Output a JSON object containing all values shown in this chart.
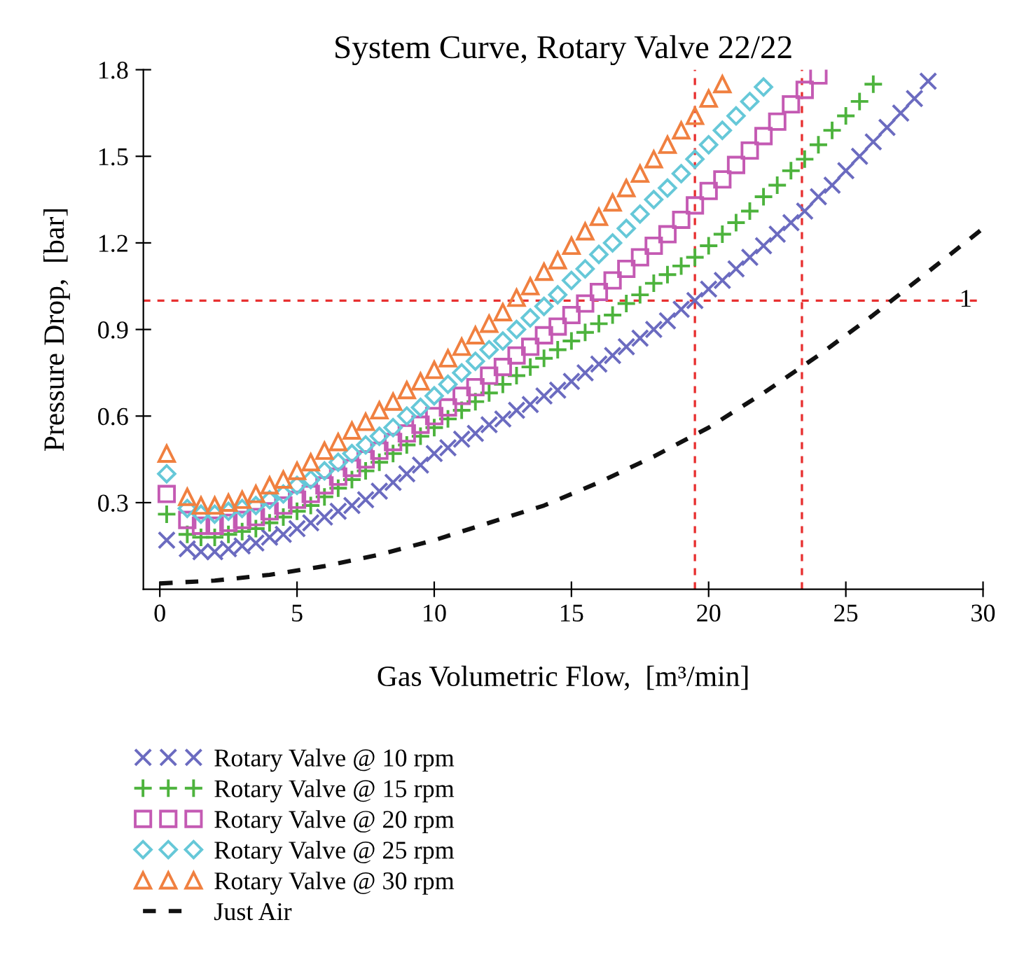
{
  "chart_data": {
    "type": "scatter",
    "title": "System Curve, Rotary Valve 22/22",
    "xlabel": "Gas Volumetric Flow,  [m³/min]",
    "ylabel": "Pressure Drop,  [bar]",
    "xlim": [
      -0.6,
      30
    ],
    "ylim": [
      0,
      1.8
    ],
    "xticks": [
      0,
      5,
      10,
      15,
      20,
      25,
      30
    ],
    "yticks": [
      0.3,
      0.6,
      0.9,
      1.2,
      1.5,
      1.8
    ],
    "grid": false,
    "legend": "bottom",
    "ref_lines": [
      {
        "axis": "y",
        "value": 1,
        "label": "1",
        "color": "#e83030",
        "line_style": "dashed"
      },
      {
        "axis": "x",
        "value": 19.5,
        "color": "#e83030",
        "line_style": "dashed"
      },
      {
        "axis": "x",
        "value": 23.4,
        "color": "#e83030",
        "line_style": "dashed"
      }
    ],
    "series": [
      {
        "name": "Rotary Valve @ 10 rpm",
        "color": "#6b6bc0",
        "marker": "x",
        "x": [
          0.25,
          1,
          1.5,
          2,
          2.5,
          3,
          3.5,
          4,
          4.5,
          5,
          5.5,
          6,
          6.5,
          7,
          7.5,
          8,
          8.5,
          9,
          9.5,
          10,
          10.5,
          11,
          11.5,
          12,
          12.5,
          13,
          13.5,
          14,
          14.5,
          15,
          15.5,
          16,
          16.5,
          17,
          17.5,
          18,
          18.5,
          19,
          19.5,
          20,
          20.5,
          21,
          21.5,
          22,
          22.5,
          23,
          23.5,
          24,
          24.5,
          25,
          25.5,
          26,
          26.5,
          27,
          27.5,
          28
        ],
        "values": [
          0.17,
          0.14,
          0.13,
          0.13,
          0.14,
          0.15,
          0.16,
          0.18,
          0.19,
          0.21,
          0.23,
          0.25,
          0.27,
          0.29,
          0.31,
          0.34,
          0.37,
          0.4,
          0.43,
          0.47,
          0.49,
          0.52,
          0.54,
          0.57,
          0.59,
          0.62,
          0.64,
          0.67,
          0.69,
          0.72,
          0.75,
          0.78,
          0.81,
          0.84,
          0.87,
          0.9,
          0.93,
          0.97,
          1.0,
          1.04,
          1.07,
          1.11,
          1.15,
          1.19,
          1.23,
          1.27,
          1.31,
          1.36,
          1.4,
          1.45,
          1.5,
          1.55,
          1.6,
          1.65,
          1.7,
          1.76
        ]
      },
      {
        "name": "Rotary Valve @ 15 rpm",
        "color": "#4db33d",
        "marker": "cross",
        "x": [
          0.25,
          1,
          1.5,
          2,
          2.5,
          3,
          3.5,
          4,
          4.5,
          5,
          5.5,
          6,
          6.5,
          7,
          7.5,
          8,
          8.5,
          9,
          9.5,
          10,
          10.5,
          11,
          11.5,
          12,
          12.5,
          13,
          13.5,
          14,
          14.5,
          15,
          15.5,
          16,
          16.5,
          17,
          17.5,
          18,
          18.5,
          19,
          19.5,
          20,
          20.5,
          21,
          21.5,
          22,
          22.5,
          23,
          23.5,
          24,
          24.5,
          25,
          25.5,
          26
        ],
        "values": [
          0.26,
          0.19,
          0.18,
          0.18,
          0.19,
          0.2,
          0.21,
          0.23,
          0.25,
          0.27,
          0.29,
          0.32,
          0.35,
          0.38,
          0.41,
          0.44,
          0.47,
          0.5,
          0.53,
          0.56,
          0.59,
          0.62,
          0.65,
          0.68,
          0.71,
          0.74,
          0.77,
          0.8,
          0.83,
          0.86,
          0.89,
          0.92,
          0.95,
          0.99,
          1.02,
          1.06,
          1.09,
          1.12,
          1.15,
          1.19,
          1.23,
          1.27,
          1.31,
          1.36,
          1.4,
          1.45,
          1.49,
          1.54,
          1.59,
          1.64,
          1.69,
          1.75
        ]
      },
      {
        "name": "Rotary Valve @ 20 rpm",
        "color": "#c45ab3",
        "marker": "square",
        "x": [
          0.25,
          1,
          1.5,
          2,
          2.5,
          3,
          3.5,
          4,
          4.5,
          5,
          5.5,
          6,
          6.5,
          7,
          7.5,
          8,
          8.5,
          9,
          9.5,
          10,
          10.5,
          11,
          11.5,
          12,
          12.5,
          13,
          13.5,
          14,
          14.5,
          15,
          15.5,
          16,
          16.5,
          17,
          17.5,
          18,
          18.5,
          19,
          19.5,
          20,
          20.5,
          21,
          21.5,
          22,
          22.5,
          23,
          23.5,
          24
        ],
        "values": [
          0.33,
          0.24,
          0.22,
          0.22,
          0.23,
          0.24,
          0.25,
          0.27,
          0.29,
          0.31,
          0.33,
          0.36,
          0.39,
          0.42,
          0.45,
          0.48,
          0.51,
          0.54,
          0.57,
          0.6,
          0.63,
          0.67,
          0.7,
          0.74,
          0.77,
          0.81,
          0.84,
          0.88,
          0.91,
          0.95,
          0.99,
          1.03,
          1.07,
          1.11,
          1.15,
          1.19,
          1.23,
          1.28,
          1.33,
          1.38,
          1.42,
          1.47,
          1.52,
          1.57,
          1.62,
          1.68,
          1.73,
          1.78
        ]
      },
      {
        "name": "Rotary Valve @ 25 rpm",
        "color": "#66c8d8",
        "marker": "diamond",
        "x": [
          0.25,
          1,
          1.5,
          2,
          2.5,
          3,
          3.5,
          4,
          4.5,
          5,
          5.5,
          6,
          6.5,
          7,
          7.5,
          8,
          8.5,
          9,
          9.5,
          10,
          10.5,
          11,
          11.5,
          12,
          12.5,
          13,
          13.5,
          14,
          14.5,
          15,
          15.5,
          16,
          16.5,
          17,
          17.5,
          18,
          18.5,
          19,
          19.5,
          20,
          20.5,
          21,
          21.5,
          22
        ],
        "values": [
          0.4,
          0.28,
          0.26,
          0.26,
          0.27,
          0.28,
          0.29,
          0.31,
          0.33,
          0.36,
          0.38,
          0.41,
          0.44,
          0.47,
          0.5,
          0.53,
          0.56,
          0.6,
          0.63,
          0.67,
          0.71,
          0.75,
          0.79,
          0.83,
          0.86,
          0.9,
          0.94,
          0.98,
          1.02,
          1.07,
          1.11,
          1.16,
          1.2,
          1.25,
          1.3,
          1.35,
          1.39,
          1.44,
          1.49,
          1.54,
          1.59,
          1.64,
          1.69,
          1.74
        ]
      },
      {
        "name": "Rotary Valve @ 30 rpm",
        "color": "#f08040",
        "marker": "triangle",
        "x": [
          0.25,
          1,
          1.5,
          2,
          2.5,
          3,
          3.5,
          4,
          4.5,
          5,
          5.5,
          6,
          6.5,
          7,
          7.5,
          8,
          8.5,
          9,
          9.5,
          10,
          10.5,
          11,
          11.5,
          12,
          12.5,
          13,
          13.5,
          14,
          14.5,
          15,
          15.5,
          16,
          16.5,
          17,
          17.5,
          18,
          18.5,
          19,
          19.5,
          20,
          20.5
        ],
        "values": [
          0.47,
          0.32,
          0.29,
          0.29,
          0.3,
          0.31,
          0.33,
          0.36,
          0.38,
          0.41,
          0.44,
          0.48,
          0.51,
          0.55,
          0.58,
          0.62,
          0.65,
          0.69,
          0.72,
          0.76,
          0.8,
          0.84,
          0.88,
          0.92,
          0.96,
          1.01,
          1.05,
          1.1,
          1.14,
          1.19,
          1.24,
          1.29,
          1.34,
          1.39,
          1.44,
          1.49,
          1.54,
          1.59,
          1.64,
          1.7,
          1.75
        ]
      },
      {
        "name": "Just Air",
        "type": "line",
        "color": "#111111",
        "marker": "none",
        "line_style": "dashed",
        "x": [
          0,
          2,
          4,
          6,
          8,
          10,
          12,
          14,
          16,
          18,
          20,
          22,
          24,
          26,
          28,
          30
        ],
        "values": [
          0.02,
          0.03,
          0.05,
          0.08,
          0.12,
          0.17,
          0.23,
          0.29,
          0.37,
          0.46,
          0.56,
          0.68,
          0.81,
          0.95,
          1.1,
          1.25
        ]
      }
    ]
  }
}
